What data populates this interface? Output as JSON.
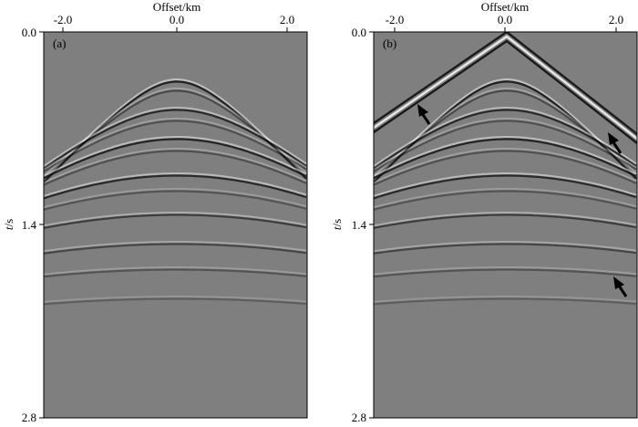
{
  "panels": [
    {
      "id": "a",
      "label": "(a)",
      "axis_title_x": "Offset/km",
      "axis_title_y_italic": "t",
      "axis_title_y_rest": "/s",
      "x_ticks": [
        "-2.0",
        "0.0",
        "2.0"
      ],
      "y_ticks": [
        "0.0",
        "1.4",
        "2.8"
      ],
      "arrows": []
    },
    {
      "id": "b",
      "label": "(b)",
      "axis_title_x": "Offset/km",
      "axis_title_y_italic": "t",
      "axis_title_y_rest": "/s",
      "x_ticks": [
        "-2.0",
        "0.0",
        "2.0"
      ],
      "y_ticks": [
        "0.0",
        "1.4",
        "2.8"
      ],
      "arrows": [
        "arrow-left-upper",
        "arrow-right-upper",
        "arrow-right-lower"
      ]
    }
  ],
  "colors": {
    "background_gray": "#7f7f7f",
    "event_dark": "#101010",
    "event_light": "#f4f4f4"
  }
}
